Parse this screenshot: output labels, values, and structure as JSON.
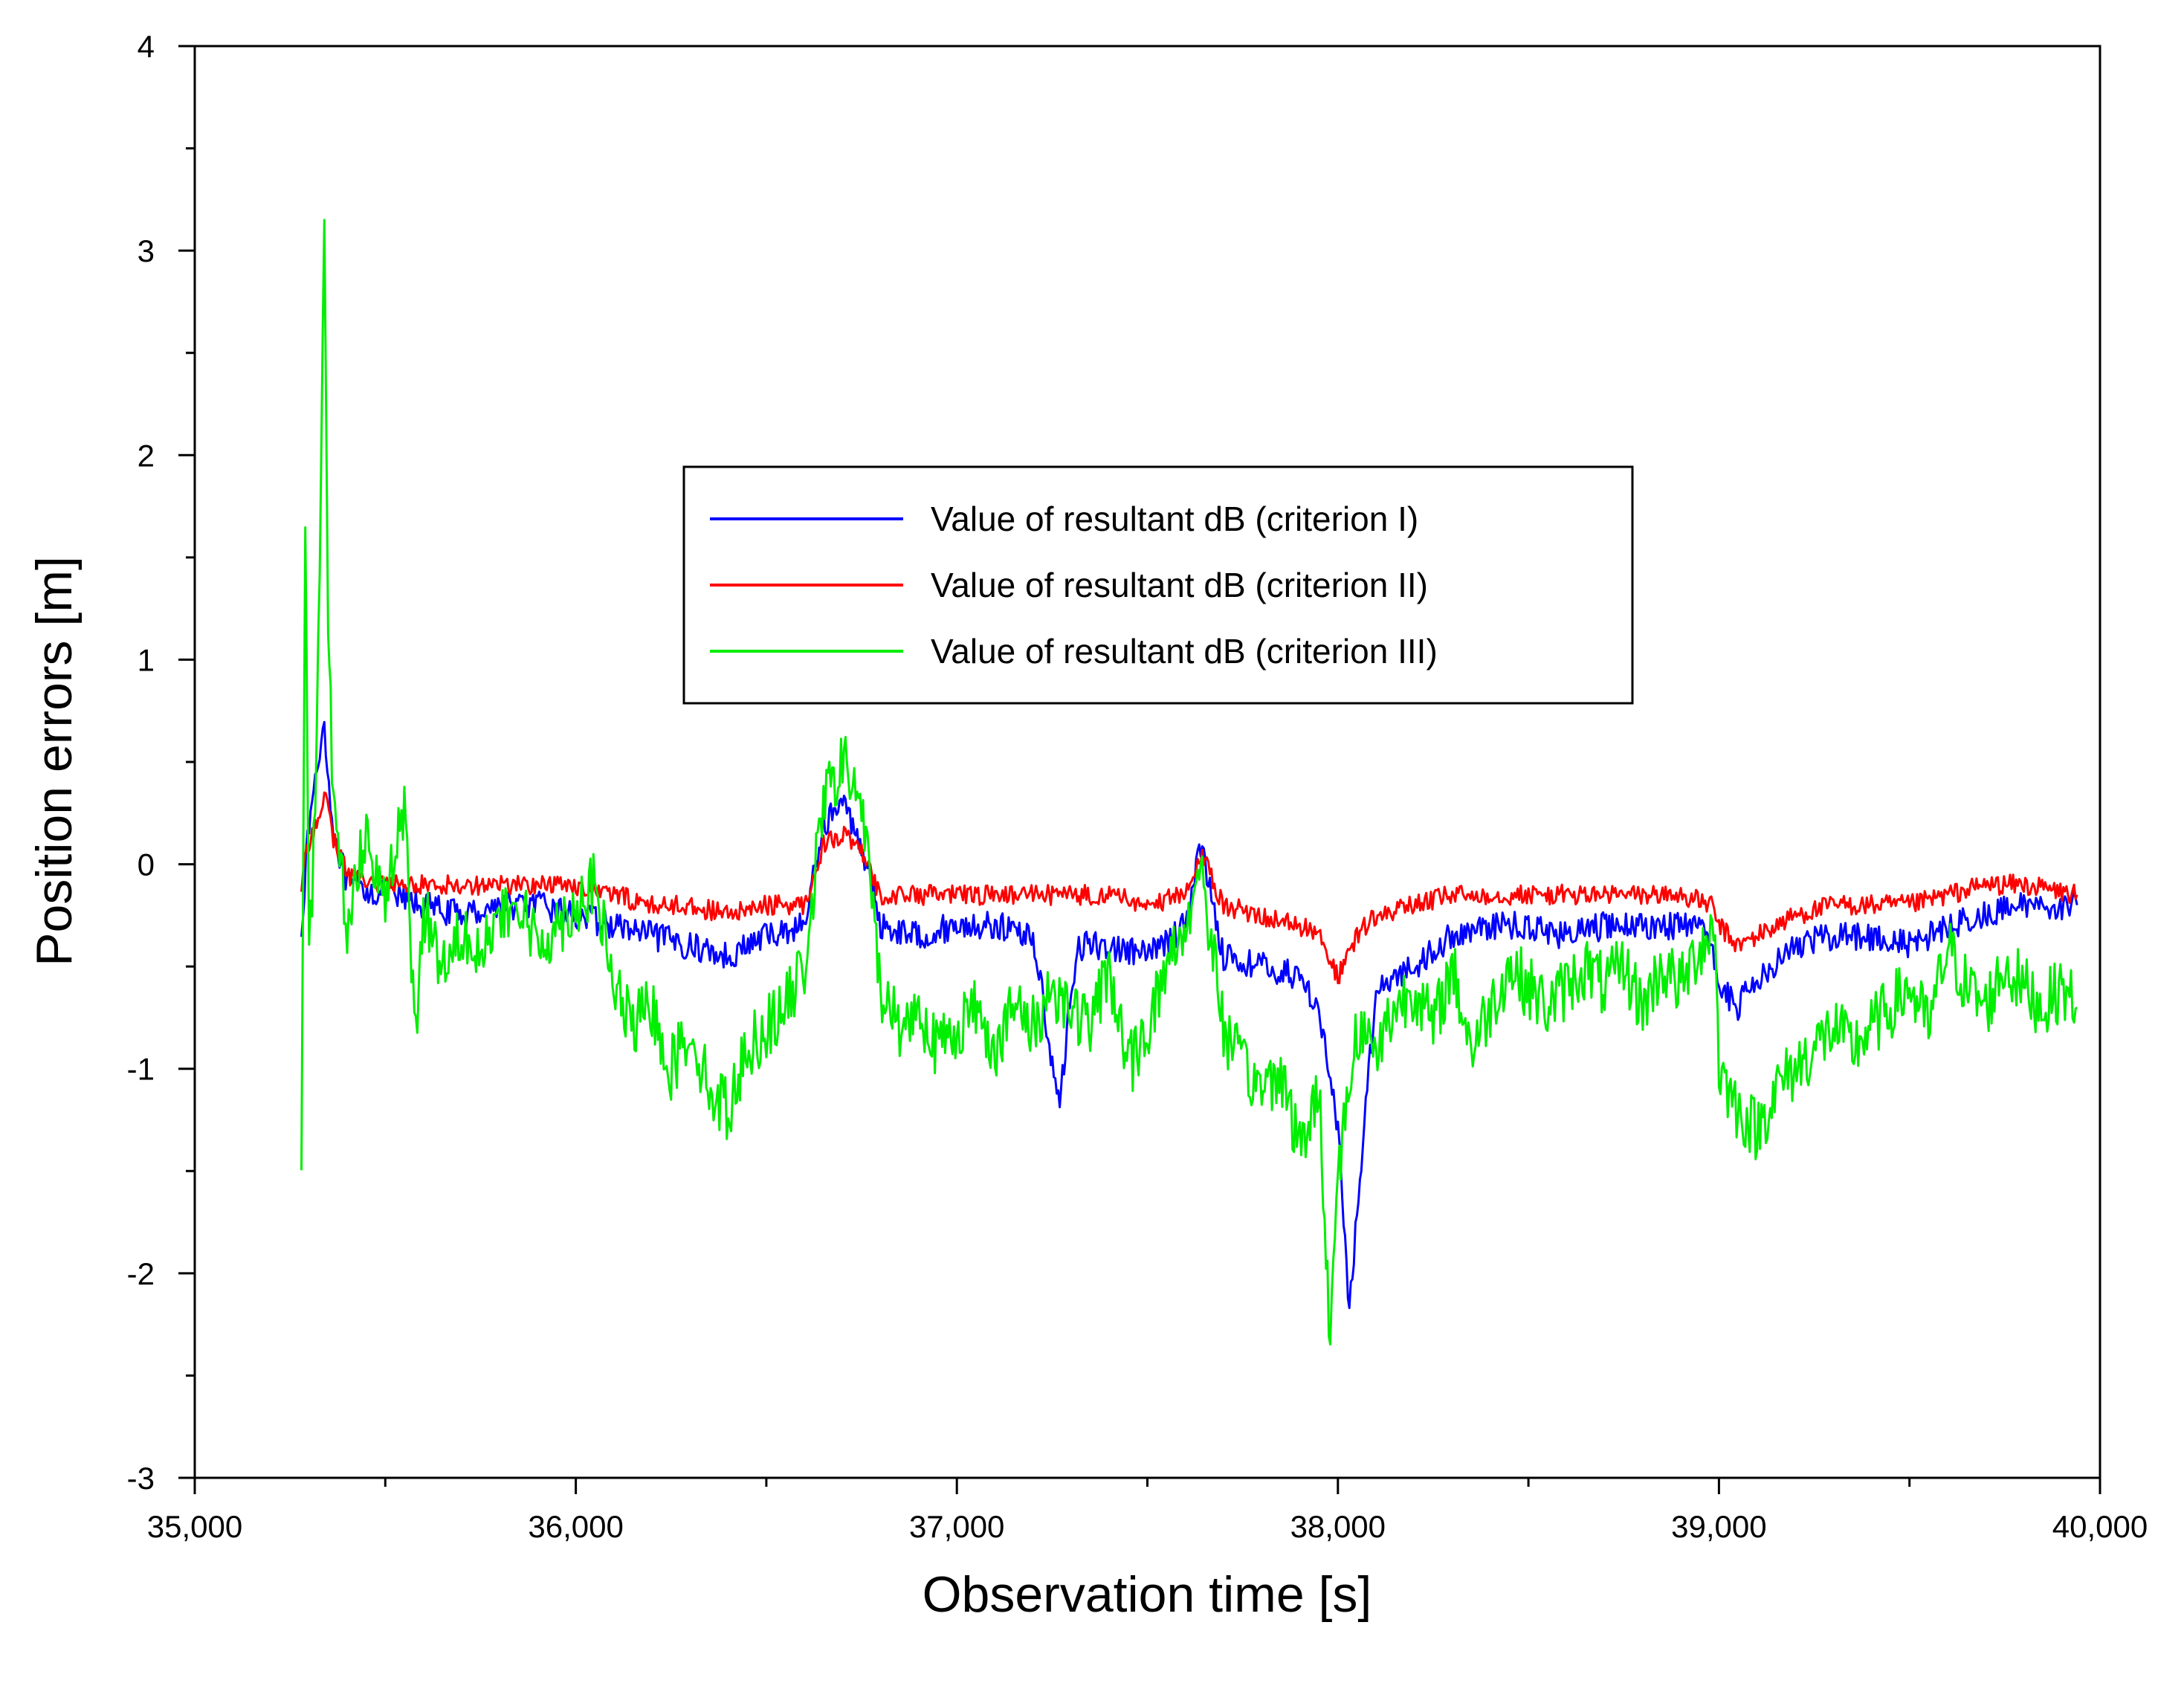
{
  "chart_data": {
    "type": "line",
    "title": "",
    "xlabel": "Observation time [s]",
    "ylabel": "Position errors [m]",
    "xlim": [
      35000,
      40000
    ],
    "ylim": [
      -3,
      4
    ],
    "xticks": [
      35000,
      36000,
      37000,
      38000,
      39000,
      40000
    ],
    "xtick_labels": [
      "35,000",
      "36,000",
      "37,000",
      "38,000",
      "39,000",
      "40,000"
    ],
    "yticks": [
      -3,
      -2,
      -1,
      0,
      1,
      2,
      3,
      4
    ],
    "ytick_labels": [
      "-3",
      "-2",
      "-1",
      "0",
      "1",
      "2",
      "3",
      "4"
    ],
    "grid": false,
    "legend_position": "upper-center",
    "series": [
      {
        "name": "Value of resultant dB (criterion I)",
        "color": "#0000ff",
        "x": [
          35280,
          35300,
          35340,
          35360,
          35400,
          35500,
          35600,
          35700,
          35800,
          35900,
          36000,
          36100,
          36200,
          36300,
          36400,
          36500,
          36600,
          36650,
          36700,
          36750,
          36800,
          36900,
          37000,
          37100,
          37200,
          37270,
          37300,
          37320,
          37400,
          37500,
          37600,
          37640,
          37700,
          37800,
          37900,
          37950,
          38000,
          38030,
          38050,
          38100,
          38200,
          38300,
          38400,
          38500,
          38600,
          38700,
          38800,
          38900,
          38980,
          39000,
          39050,
          39100,
          39200,
          39300,
          39400,
          39500,
          39600,
          39700,
          39800,
          39940
        ],
        "values": [
          -0.3,
          0.2,
          0.7,
          0.2,
          -0.1,
          -0.15,
          -0.2,
          -0.25,
          -0.2,
          -0.2,
          -0.25,
          -0.3,
          -0.35,
          -0.4,
          -0.45,
          -0.35,
          -0.3,
          0.2,
          0.3,
          0.1,
          -0.3,
          -0.35,
          -0.3,
          -0.3,
          -0.35,
          -1.2,
          -0.6,
          -0.4,
          -0.4,
          -0.45,
          -0.3,
          0.1,
          -0.45,
          -0.5,
          -0.55,
          -0.7,
          -1.3,
          -2.2,
          -1.7,
          -0.6,
          -0.5,
          -0.35,
          -0.3,
          -0.3,
          -0.35,
          -0.3,
          -0.3,
          -0.3,
          -0.35,
          -0.6,
          -0.7,
          -0.55,
          -0.4,
          -0.35,
          -0.35,
          -0.4,
          -0.3,
          -0.25,
          -0.2,
          -0.2
        ]
      },
      {
        "name": "Value of resultant dB (criterion II)",
        "color": "#ff0000",
        "x": [
          35280,
          35300,
          35340,
          35360,
          35400,
          35500,
          35600,
          35700,
          35800,
          35900,
          36000,
          36100,
          36200,
          36300,
          36400,
          36500,
          36600,
          36650,
          36700,
          36750,
          36800,
          36900,
          37000,
          37100,
          37200,
          37270,
          37300,
          37320,
          37400,
          37500,
          37600,
          37640,
          37700,
          37800,
          37900,
          37950,
          38000,
          38030,
          38050,
          38100,
          38200,
          38300,
          38400,
          38500,
          38600,
          38700,
          38800,
          38900,
          38980,
          39000,
          39050,
          39100,
          39200,
          39300,
          39400,
          39500,
          39600,
          39700,
          39800,
          39940
        ],
        "values": [
          -0.1,
          0.1,
          0.35,
          0.15,
          -0.05,
          -0.1,
          -0.1,
          -0.1,
          -0.1,
          -0.1,
          -0.1,
          -0.15,
          -0.2,
          -0.2,
          -0.25,
          -0.2,
          -0.2,
          0.1,
          0.15,
          0.05,
          -0.15,
          -0.15,
          -0.15,
          -0.15,
          -0.15,
          -0.15,
          -0.15,
          -0.15,
          -0.15,
          -0.2,
          -0.15,
          0.05,
          -0.2,
          -0.25,
          -0.3,
          -0.35,
          -0.55,
          -0.45,
          -0.35,
          -0.25,
          -0.2,
          -0.15,
          -0.15,
          -0.15,
          -0.15,
          -0.15,
          -0.15,
          -0.15,
          -0.2,
          -0.3,
          -0.4,
          -0.35,
          -0.25,
          -0.2,
          -0.2,
          -0.2,
          -0.15,
          -0.1,
          -0.1,
          -0.15
        ]
      },
      {
        "name": "Value of resultant dB (criterion III)",
        "color": "#00ee00",
        "x": [
          35280,
          35290,
          35300,
          35320,
          35340,
          35350,
          35360,
          35380,
          35400,
          35450,
          35500,
          35550,
          35580,
          35600,
          35650,
          35700,
          35750,
          35800,
          35850,
          35900,
          35950,
          36000,
          36050,
          36100,
          36150,
          36200,
          36250,
          36300,
          36350,
          36400,
          36450,
          36500,
          36550,
          36600,
          36650,
          36700,
          36750,
          36800,
          36850,
          36900,
          36950,
          37000,
          37050,
          37100,
          37150,
          37200,
          37250,
          37300,
          37350,
          37400,
          37450,
          37500,
          37550,
          37600,
          37640,
          37700,
          37750,
          37800,
          37850,
          37900,
          37950,
          37980,
          38000,
          38050,
          38100,
          38150,
          38200,
          38250,
          38300,
          38350,
          38400,
          38450,
          38500,
          38550,
          38600,
          38650,
          38700,
          38750,
          38800,
          38850,
          38900,
          38950,
          38990,
          39000,
          39050,
          39100,
          39150,
          39200,
          39250,
          39300,
          39350,
          39400,
          39450,
          39500,
          39550,
          39600,
          39650,
          39700,
          39750,
          39800,
          39850,
          39900,
          39940
        ],
        "values": [
          -1.4,
          1.7,
          -0.5,
          0.5,
          3.0,
          1.2,
          0.5,
          0.0,
          -0.3,
          0.2,
          -0.2,
          0.3,
          -0.9,
          -0.2,
          -0.5,
          -0.3,
          -0.4,
          -0.3,
          -0.2,
          -0.4,
          -0.3,
          -0.2,
          -0.1,
          -0.6,
          -0.8,
          -0.7,
          -1.0,
          -0.8,
          -1.1,
          -1.2,
          -0.9,
          -0.8,
          -0.7,
          -0.5,
          0.3,
          0.5,
          0.3,
          -0.6,
          -0.8,
          -0.7,
          -0.9,
          -0.8,
          -0.7,
          -0.9,
          -0.7,
          -0.8,
          -0.6,
          -0.7,
          -0.8,
          -0.5,
          -1.0,
          -0.8,
          -0.5,
          -0.3,
          0.0,
          -0.8,
          -1.0,
          -1.1,
          -1.0,
          -1.4,
          -1.1,
          -2.3,
          -1.5,
          -0.8,
          -0.9,
          -0.7,
          -0.6,
          -0.8,
          -0.5,
          -0.9,
          -0.7,
          -0.5,
          -0.6,
          -0.7,
          -0.6,
          -0.5,
          -0.6,
          -0.5,
          -0.7,
          -0.5,
          -0.6,
          -0.4,
          -0.3,
          -1.0,
          -1.2,
          -1.3,
          -1.1,
          -1.0,
          -0.9,
          -0.8,
          -0.9,
          -0.8,
          -0.7,
          -0.6,
          -0.8,
          -0.4,
          -0.6,
          -0.7,
          -0.5,
          -0.6,
          -0.7,
          -0.6,
          -0.7
        ]
      }
    ]
  }
}
